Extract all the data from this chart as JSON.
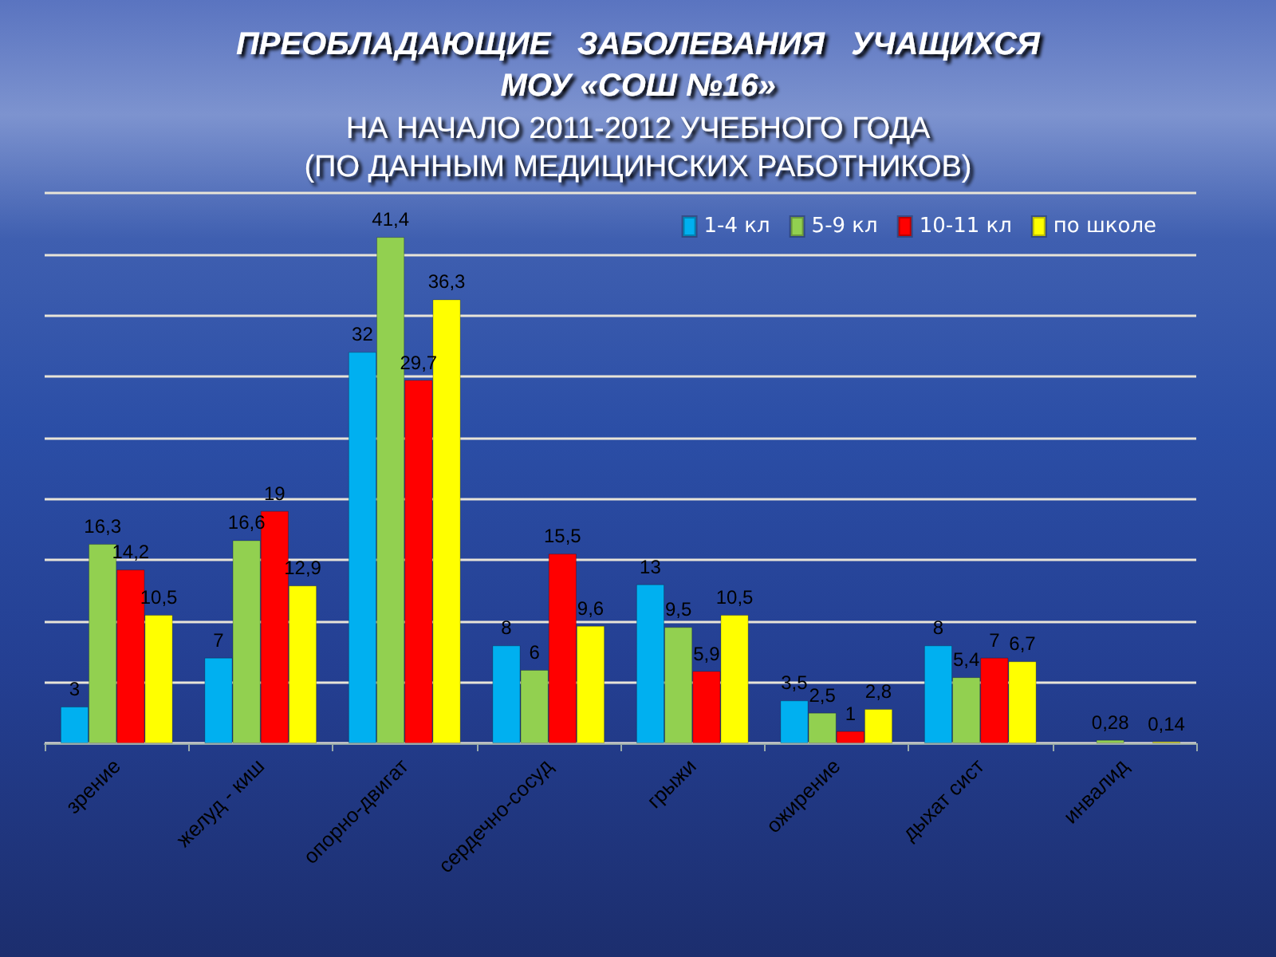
{
  "chart_data": {
    "type": "bar",
    "title": "ПРЕОБЛАДАЮЩИЕ   ЗАБОЛЕВАНИЯ   УЧАЩИХСЯ\nМОУ «СОШ №16»",
    "subtitle": "НА НАЧАЛО 2011-2012 УЧЕБНОГО ГОДА\n(ПО ДАННЫМ МЕДИЦИНСКИХ РАБОТНИКОВ)",
    "categories": [
      "зрение",
      "желуд - киш",
      "опорно-двигат",
      "сердечно-сосуд",
      "грыжи",
      "ожирение",
      "дыхат сист",
      "инвалид"
    ],
    "series": [
      {
        "name": "1-4 кл",
        "color": "#00b0f0",
        "values": [
          3,
          7,
          32,
          8,
          13,
          3.5,
          8,
          null
        ],
        "value_labels": [
          "3",
          "7",
          "32",
          "8",
          "13",
          "3,5",
          "8",
          null
        ]
      },
      {
        "name": "5-9 кл",
        "color": "#92d050",
        "values": [
          16.3,
          16.6,
          41.4,
          6,
          9.5,
          2.5,
          5.4,
          0.28
        ],
        "value_labels": [
          "16,3",
          "16,6",
          "41,4",
          "6",
          "9,5",
          "2,5",
          "5,4",
          "0,28"
        ]
      },
      {
        "name": "10-11 кл",
        "color": "#ff0000",
        "values": [
          14.2,
          19,
          29.7,
          15.5,
          5.9,
          1,
          7,
          null
        ],
        "value_labels": [
          "14,2",
          "19",
          "29,7",
          "15,5",
          "5,9",
          "1",
          "7",
          null
        ]
      },
      {
        "name": "по школе",
        "color": "#ffff00",
        "values": [
          10.5,
          12.9,
          36.3,
          9.6,
          10.5,
          2.8,
          6.7,
          0.14
        ],
        "value_labels": [
          "10,5",
          "12,9",
          "36,3",
          "9,6",
          "10,5",
          "2,8",
          "6,7",
          "0,14"
        ]
      }
    ],
    "ylim": [
      0,
      45
    ],
    "yticks": [
      {
        "value": 0,
        "label": null
      },
      {
        "value": 5,
        "label": null
      },
      {
        "value": 10,
        "label": null
      },
      {
        "value": 15,
        "label": null
      },
      {
        "value": 20,
        "label": null
      },
      {
        "value": 25,
        "label": null
      },
      {
        "value": 30,
        "label": null
      },
      {
        "value": 35,
        "label": null
      },
      {
        "value": 40,
        "label": null
      },
      {
        "value": 45,
        "label": null
      }
    ],
    "tick_labels": "x",
    "grid": "y",
    "legend": "top right"
  }
}
